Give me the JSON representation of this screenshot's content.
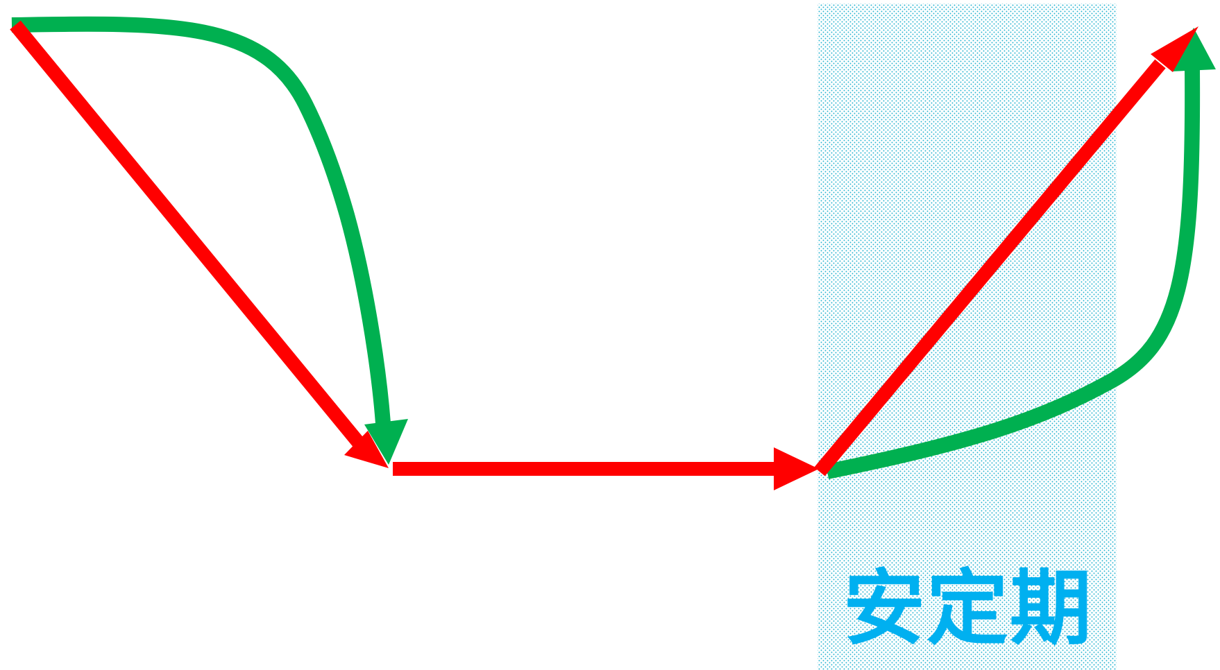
{
  "stable_period": {
    "label": "安定期",
    "label_color": "#00b0f0",
    "fill_color": "#00a6c8"
  },
  "arrows": {
    "red_color": "#ff0000",
    "green_color": "#00b050"
  }
}
